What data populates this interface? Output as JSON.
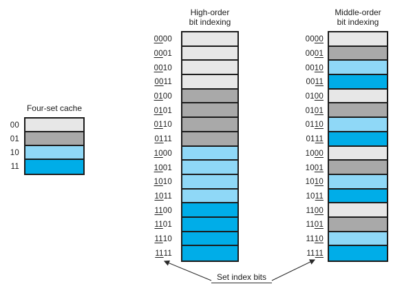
{
  "colors": {
    "sets": {
      "00": "#e7e7e7",
      "01": "#a9a9a9",
      "10": "#8fd8f7",
      "11": "#00ade8"
    },
    "border": "#1a1a1a",
    "line": "#2a2a2a"
  },
  "four_set_cache": {
    "title": "Four-set cache",
    "rows": [
      {
        "label": "00",
        "set": "00"
      },
      {
        "label": "01",
        "set": "01"
      },
      {
        "label": "10",
        "set": "10"
      },
      {
        "label": "11",
        "set": "11"
      }
    ]
  },
  "high_order": {
    "title_line1": "High-order",
    "title_line2": "bit indexing",
    "underline": [
      0,
      2
    ],
    "rows": [
      {
        "bits": "0000",
        "set": "00"
      },
      {
        "bits": "0001",
        "set": "00"
      },
      {
        "bits": "0010",
        "set": "00"
      },
      {
        "bits": "0011",
        "set": "00"
      },
      {
        "bits": "0100",
        "set": "01"
      },
      {
        "bits": "0101",
        "set": "01"
      },
      {
        "bits": "0110",
        "set": "01"
      },
      {
        "bits": "0111",
        "set": "01"
      },
      {
        "bits": "1000",
        "set": "10"
      },
      {
        "bits": "1001",
        "set": "10"
      },
      {
        "bits": "1010",
        "set": "10"
      },
      {
        "bits": "1011",
        "set": "10"
      },
      {
        "bits": "1100",
        "set": "11"
      },
      {
        "bits": "1101",
        "set": "11"
      },
      {
        "bits": "1110",
        "set": "11"
      },
      {
        "bits": "1111",
        "set": "11"
      }
    ]
  },
  "middle_order": {
    "title_line1": "Middle-order",
    "title_line2": "bit indexing",
    "underline": [
      2,
      4
    ],
    "rows": [
      {
        "bits": "0000",
        "set": "00"
      },
      {
        "bits": "0001",
        "set": "01"
      },
      {
        "bits": "0010",
        "set": "10"
      },
      {
        "bits": "0011",
        "set": "11"
      },
      {
        "bits": "0100",
        "set": "00"
      },
      {
        "bits": "0101",
        "set": "01"
      },
      {
        "bits": "0110",
        "set": "10"
      },
      {
        "bits": "0111",
        "set": "11"
      },
      {
        "bits": "1000",
        "set": "00"
      },
      {
        "bits": "1001",
        "set": "01"
      },
      {
        "bits": "1010",
        "set": "10"
      },
      {
        "bits": "1011",
        "set": "11"
      },
      {
        "bits": "1100",
        "set": "00"
      },
      {
        "bits": "1101",
        "set": "01"
      },
      {
        "bits": "1110",
        "set": "10"
      },
      {
        "bits": "1111",
        "set": "11"
      }
    ]
  },
  "annotation": {
    "label": "Set index bits"
  }
}
